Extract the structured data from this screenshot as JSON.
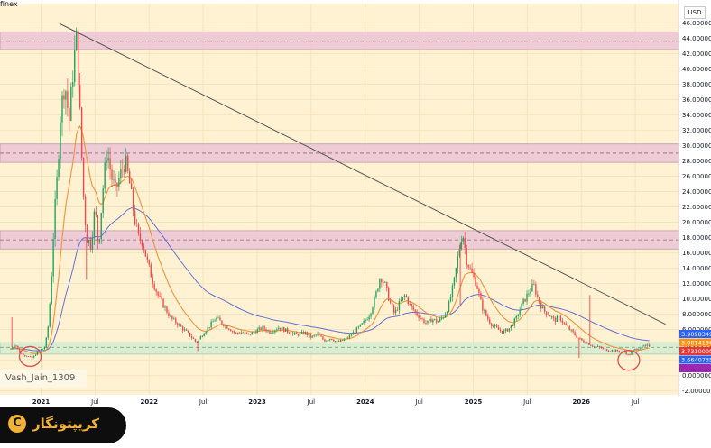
{
  "header": {
    "exchange_label": "finex",
    "currency": "USD"
  },
  "watermark": "Vash_Jain_1309",
  "logo": {
    "text": "کریپتونگار",
    "mark": "C"
  },
  "colors": {
    "plot_bg": "#fff2d2",
    "zone_fill": "#ecc8d6",
    "zone_border": "#c48aa6",
    "support_fill": "#d6ecd2",
    "candle_up": "#22a05a",
    "candle_down": "#f04848",
    "ema_fast": "#f1923a",
    "ema_slow": "#6670d4",
    "trendline": "#555555",
    "circle": "#e04b4b"
  },
  "chart_data": {
    "type": "candlestick",
    "title": "",
    "xlabel": "",
    "ylabel": "",
    "ylim": [
      -2.5,
      48.5
    ],
    "grid": true,
    "y_ticks": [
      "46.0000000",
      "44.0000000",
      "42.0000000",
      "40.0000000",
      "38.0000000",
      "36.0000000",
      "34.0000000",
      "32.0000000",
      "30.0000000",
      "28.0000000",
      "26.0000000",
      "24.0000000",
      "22.0000000",
      "20.0000000",
      "18.0000000",
      "16.0000000",
      "14.0000000",
      "12.0000000",
      "10.0000000",
      "8.0000000",
      "6.0000000",
      "4.0000000",
      "2.0000000",
      "0.0000000",
      "-2.0000000"
    ],
    "x_ticks": [
      {
        "label": "2021",
        "t": 2021.0
      },
      {
        "label": "Jul",
        "t": 2021.5
      },
      {
        "label": "2022",
        "t": 2022.0
      },
      {
        "label": "Jul",
        "t": 2022.5
      },
      {
        "label": "2023",
        "t": 2023.0
      },
      {
        "label": "Jul",
        "t": 2023.5
      },
      {
        "label": "2024",
        "t": 2024.0
      },
      {
        "label": "Jul",
        "t": 2024.5
      },
      {
        "label": "2025",
        "t": 2025.0
      },
      {
        "label": "Jul",
        "t": 2025.5
      },
      {
        "label": "2026",
        "t": 2026.0
      },
      {
        "label": "Jul",
        "t": 2026.5
      }
    ],
    "resistance_zones": [
      {
        "low": 42.5,
        "high": 44.8,
        "mid": 43.6
      },
      {
        "low": 27.8,
        "high": 30.2,
        "mid": 29.0
      },
      {
        "low": 16.5,
        "high": 18.9,
        "mid": 17.7
      }
    ],
    "support_zone": {
      "low": 2.8,
      "high": 4.3,
      "mid": 3.7
    },
    "trendline": [
      {
        "t": 2021.17,
        "v": 45.9
      },
      {
        "t": 2026.78,
        "v": 6.7
      }
    ],
    "price_labels": [
      {
        "text": "3.9098349",
        "color": "#2962ff"
      },
      {
        "text": "3.9014136",
        "color": "#f7931a"
      },
      {
        "text": "3.7310000",
        "color": "#e53935"
      },
      {
        "text": "3.6640735",
        "color": "#2962ff"
      },
      {
        "text": "",
        "color": "#9c27b0"
      }
    ],
    "markers": [
      {
        "t": 2020.9,
        "v": 2.5
      },
      {
        "t": 2026.44,
        "v": 2.0
      }
    ],
    "price_path": [
      {
        "t": 2020.72,
        "v": 3.5
      },
      {
        "t": 2020.76,
        "v": 4.2
      },
      {
        "t": 2020.8,
        "v": 3.0
      },
      {
        "t": 2020.86,
        "v": 2.6
      },
      {
        "t": 2020.92,
        "v": 2.3
      },
      {
        "t": 2020.98,
        "v": 3.3
      },
      {
        "t": 2021.03,
        "v": 3.6
      },
      {
        "t": 2021.06,
        "v": 5.5
      },
      {
        "t": 2021.09,
        "v": 11.0
      },
      {
        "t": 2021.12,
        "v": 20.0
      },
      {
        "t": 2021.15,
        "v": 26.0
      },
      {
        "t": 2021.18,
        "v": 34.0
      },
      {
        "t": 2021.22,
        "v": 38.5
      },
      {
        "t": 2021.26,
        "v": 33.0
      },
      {
        "t": 2021.3,
        "v": 40.5
      },
      {
        "t": 2021.33,
        "v": 44.0
      },
      {
        "t": 2021.36,
        "v": 34.0
      },
      {
        "t": 2021.39,
        "v": 24.0
      },
      {
        "t": 2021.42,
        "v": 18.0
      },
      {
        "t": 2021.46,
        "v": 17.0
      },
      {
        "t": 2021.5,
        "v": 22.0
      },
      {
        "t": 2021.53,
        "v": 16.5
      },
      {
        "t": 2021.57,
        "v": 24.0
      },
      {
        "t": 2021.61,
        "v": 29.5
      },
      {
        "t": 2021.65,
        "v": 26.0
      },
      {
        "t": 2021.69,
        "v": 24.0
      },
      {
        "t": 2021.74,
        "v": 26.5
      },
      {
        "t": 2021.78,
        "v": 28.0
      },
      {
        "t": 2021.82,
        "v": 25.0
      },
      {
        "t": 2021.86,
        "v": 21.0
      },
      {
        "t": 2021.9,
        "v": 18.0
      },
      {
        "t": 2021.94,
        "v": 17.5
      },
      {
        "t": 2021.98,
        "v": 15.0
      },
      {
        "t": 2022.03,
        "v": 12.5
      },
      {
        "t": 2022.08,
        "v": 10.5
      },
      {
        "t": 2022.14,
        "v": 9.0
      },
      {
        "t": 2022.2,
        "v": 7.5
      },
      {
        "t": 2022.26,
        "v": 6.8
      },
      {
        "t": 2022.32,
        "v": 6.0
      },
      {
        "t": 2022.38,
        "v": 5.2
      },
      {
        "t": 2022.44,
        "v": 4.3
      },
      {
        "t": 2022.5,
        "v": 5.5
      },
      {
        "t": 2022.56,
        "v": 6.5
      },
      {
        "t": 2022.62,
        "v": 7.5
      },
      {
        "t": 2022.68,
        "v": 6.8
      },
      {
        "t": 2022.74,
        "v": 6.2
      },
      {
        "t": 2022.8,
        "v": 5.5
      },
      {
        "t": 2022.86,
        "v": 5.7
      },
      {
        "t": 2022.92,
        "v": 5.3
      },
      {
        "t": 2022.98,
        "v": 5.8
      },
      {
        "t": 2023.05,
        "v": 6.2
      },
      {
        "t": 2023.12,
        "v": 5.7
      },
      {
        "t": 2023.2,
        "v": 6.3
      },
      {
        "t": 2023.28,
        "v": 5.8
      },
      {
        "t": 2023.36,
        "v": 5.3
      },
      {
        "t": 2023.44,
        "v": 5.6
      },
      {
        "t": 2023.5,
        "v": 5.0
      },
      {
        "t": 2023.56,
        "v": 5.4
      },
      {
        "t": 2023.62,
        "v": 4.6
      },
      {
        "t": 2023.68,
        "v": 4.9
      },
      {
        "t": 2023.74,
        "v": 4.4
      },
      {
        "t": 2023.8,
        "v": 4.6
      },
      {
        "t": 2023.86,
        "v": 5.2
      },
      {
        "t": 2023.92,
        "v": 6.0
      },
      {
        "t": 2023.98,
        "v": 6.8
      },
      {
        "t": 2024.04,
        "v": 8.0
      },
      {
        "t": 2024.09,
        "v": 10.0
      },
      {
        "t": 2024.14,
        "v": 13.0
      },
      {
        "t": 2024.18,
        "v": 12.0
      },
      {
        "t": 2024.22,
        "v": 10.0
      },
      {
        "t": 2024.27,
        "v": 8.0
      },
      {
        "t": 2024.32,
        "v": 9.5
      },
      {
        "t": 2024.37,
        "v": 10.5
      },
      {
        "t": 2024.42,
        "v": 9.0
      },
      {
        "t": 2024.47,
        "v": 8.2
      },
      {
        "t": 2024.52,
        "v": 7.4
      },
      {
        "t": 2024.57,
        "v": 6.8
      },
      {
        "t": 2024.62,
        "v": 7.4
      },
      {
        "t": 2024.67,
        "v": 7.0
      },
      {
        "t": 2024.72,
        "v": 7.6
      },
      {
        "t": 2024.77,
        "v": 9.0
      },
      {
        "t": 2024.82,
        "v": 12.0
      },
      {
        "t": 2024.87,
        "v": 16.5
      },
      {
        "t": 2024.9,
        "v": 18.8
      },
      {
        "t": 2024.94,
        "v": 15.0
      },
      {
        "t": 2024.98,
        "v": 13.5
      },
      {
        "t": 2025.03,
        "v": 12.0
      },
      {
        "t": 2025.08,
        "v": 9.0
      },
      {
        "t": 2025.13,
        "v": 7.5
      },
      {
        "t": 2025.18,
        "v": 6.5
      },
      {
        "t": 2025.23,
        "v": 6.0
      },
      {
        "t": 2025.28,
        "v": 5.7
      },
      {
        "t": 2025.34,
        "v": 6.2
      },
      {
        "t": 2025.4,
        "v": 7.5
      },
      {
        "t": 2025.46,
        "v": 9.5
      },
      {
        "t": 2025.52,
        "v": 11.0
      },
      {
        "t": 2025.56,
        "v": 11.8
      },
      {
        "t": 2025.6,
        "v": 10.0
      },
      {
        "t": 2025.65,
        "v": 8.5
      },
      {
        "t": 2025.7,
        "v": 8.0
      },
      {
        "t": 2025.75,
        "v": 7.2
      },
      {
        "t": 2025.8,
        "v": 7.6
      },
      {
        "t": 2025.85,
        "v": 6.6
      },
      {
        "t": 2025.9,
        "v": 5.9
      },
      {
        "t": 2025.95,
        "v": 5.2
      },
      {
        "t": 2026.0,
        "v": 4.6
      },
      {
        "t": 2026.05,
        "v": 4.3
      },
      {
        "t": 2026.1,
        "v": 3.9
      },
      {
        "t": 2026.16,
        "v": 3.7
      },
      {
        "t": 2026.22,
        "v": 3.4
      },
      {
        "t": 2026.28,
        "v": 3.3
      },
      {
        "t": 2026.34,
        "v": 3.2
      },
      {
        "t": 2026.4,
        "v": 3.1
      },
      {
        "t": 2026.44,
        "v": 2.6
      },
      {
        "t": 2026.48,
        "v": 3.3
      },
      {
        "t": 2026.53,
        "v": 3.6
      },
      {
        "t": 2026.58,
        "v": 3.8
      },
      {
        "t": 2026.63,
        "v": 3.9
      }
    ],
    "spikes": [
      {
        "t": 2020.73,
        "v": 7.6
      },
      {
        "t": 2021.42,
        "v": 12.5
      },
      {
        "t": 2022.45,
        "v": 3.2
      },
      {
        "t": 2024.88,
        "v": 9.0
      },
      {
        "t": 2025.98,
        "v": 2.3
      },
      {
        "t": 2026.08,
        "v": 10.5
      }
    ]
  }
}
